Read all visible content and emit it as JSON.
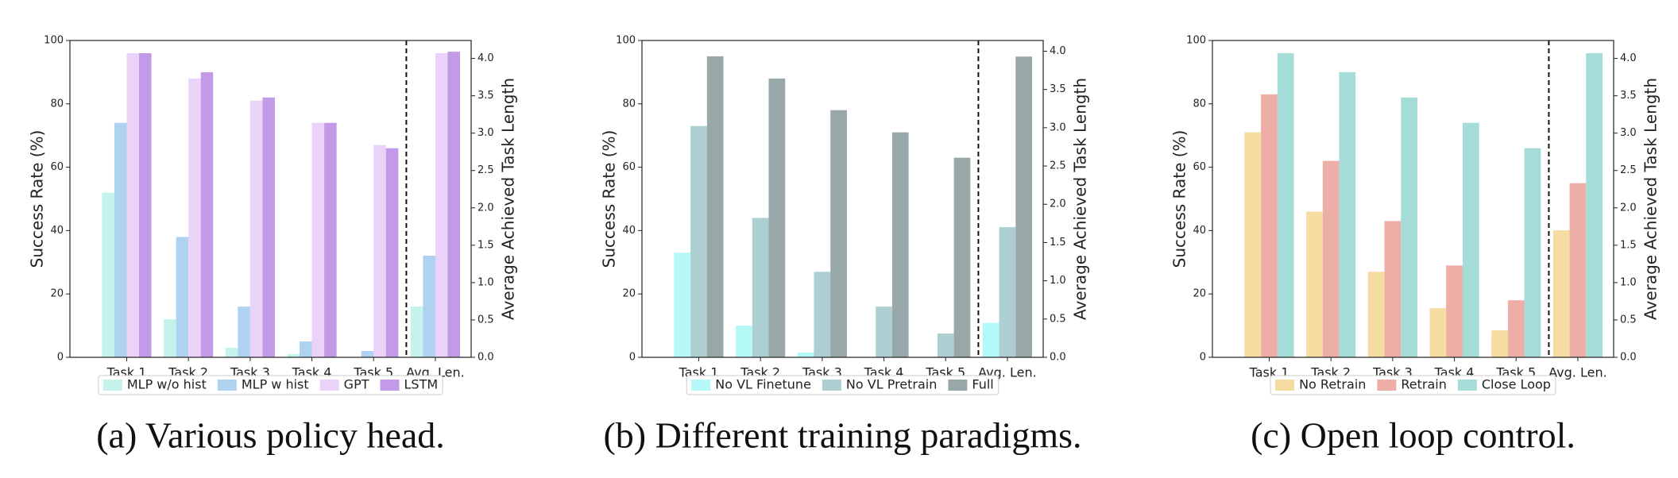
{
  "chart_data": [
    {
      "type": "bar",
      "caption": "(a) Various policy head.",
      "ylabel": "Success Rate (%)",
      "y2label": "Average Achieved Task Length",
      "categories": [
        "Task 1",
        "Task 2",
        "Task 3",
        "Task 4",
        "Task 5"
      ],
      "avg_category": "Avg. Len.",
      "ylim": [
        0,
        100
      ],
      "yticks": [
        0,
        20,
        40,
        60,
        80,
        100
      ],
      "y2lim": [
        0,
        4.24
      ],
      "y2ticks": [
        {
          "value": 0,
          "label": "0.0"
        },
        {
          "value": 0.5,
          "label": "0.5"
        },
        {
          "value": 1,
          "label": "1.0"
        },
        {
          "value": 1.5,
          "label": "1.5"
        },
        {
          "value": 2,
          "label": "2.0"
        },
        {
          "value": 2.5,
          "label": "2.5"
        },
        {
          "value": 3,
          "label": "3.0"
        },
        {
          "value": 3.5,
          "label": "3.5"
        },
        {
          "value": 4,
          "label": "4.0"
        }
      ],
      "series": [
        {
          "name": "MLP w/o hist",
          "color": "#c6f2ec",
          "values": [
            52,
            12,
            3,
            1,
            0
          ],
          "avg_value": 0.68
        },
        {
          "name": "MLP w hist",
          "color": "#aed2f0",
          "values": [
            74,
            38,
            16,
            5,
            2
          ],
          "avg_value": 1.36
        },
        {
          "name": "GPT",
          "color": "#ead2f8",
          "values": [
            96,
            88,
            81,
            74,
            67
          ],
          "avg_value": 4.07
        },
        {
          "name": "LSTM",
          "color": "#c39ae8",
          "values": [
            96,
            90,
            82,
            74,
            66
          ],
          "avg_value": 4.09
        }
      ]
    },
    {
      "type": "bar",
      "caption": "(b) Different training paradigms.",
      "ylabel": "Success Rate (%)",
      "y2label": "Average Achieved Task Length",
      "categories": [
        "Task 1",
        "Task 2",
        "Task 3",
        "Task 4",
        "Task 5"
      ],
      "avg_category": "Avg. Len.",
      "ylim": [
        0,
        100
      ],
      "yticks": [
        0,
        20,
        40,
        60,
        80,
        100
      ],
      "y2lim": [
        0,
        4.14
      ],
      "y2ticks": [
        {
          "value": 0,
          "label": "0.0"
        },
        {
          "value": 0.5,
          "label": "0.5"
        },
        {
          "value": 1,
          "label": "1.0"
        },
        {
          "value": 1.5,
          "label": "1.5"
        },
        {
          "value": 2,
          "label": "2.0"
        },
        {
          "value": 2.5,
          "label": "2.5"
        },
        {
          "value": 3,
          "label": "3.0"
        },
        {
          "value": 3.5,
          "label": "3.5"
        },
        {
          "value": 4,
          "label": "4.0"
        }
      ],
      "series": [
        {
          "name": "No VL Finetune",
          "color": "#b4f8f8",
          "values": [
            33,
            10,
            1.5,
            0,
            0
          ],
          "avg_value": 0.45
        },
        {
          "name": "No VL Pretrain",
          "color": "#aecfd2",
          "values": [
            73,
            44,
            27,
            16,
            7.5
          ],
          "avg_value": 1.7
        },
        {
          "name": "Full",
          "color": "#98a8a8",
          "values": [
            95,
            88,
            78,
            71,
            63
          ],
          "avg_value": 3.93
        }
      ]
    },
    {
      "type": "bar",
      "caption": "(c) Open loop control.",
      "ylabel": "Success Rate (%)",
      "y2label": "Average Achieved Task Length",
      "categories": [
        "Task 1",
        "Task 2",
        "Task 3",
        "Task 4",
        "Task 5"
      ],
      "avg_category": "Avg. Len.",
      "ylim": [
        0,
        100
      ],
      "yticks": [
        0,
        20,
        40,
        60,
        80,
        100
      ],
      "y2lim": [
        0,
        4.24
      ],
      "y2ticks": [
        {
          "value": 0,
          "label": "0.0"
        },
        {
          "value": 0.5,
          "label": "0.5"
        },
        {
          "value": 1,
          "label": "1.0"
        },
        {
          "value": 1.5,
          "label": "1.5"
        },
        {
          "value": 2,
          "label": "2.0"
        },
        {
          "value": 2.5,
          "label": "2.5"
        },
        {
          "value": 3,
          "label": "3.0"
        },
        {
          "value": 3.5,
          "label": "3.5"
        },
        {
          "value": 4,
          "label": "4.0"
        }
      ],
      "series": [
        {
          "name": "No Retrain",
          "color": "#f5dca0",
          "values": [
            71,
            46,
            27,
            15.5,
            8.5
          ],
          "avg_value": 1.7
        },
        {
          "name": "Retrain",
          "color": "#eeaea8",
          "values": [
            83,
            62,
            43,
            29,
            18
          ],
          "avg_value": 2.33
        },
        {
          "name": "Close Loop",
          "color": "#a6dcd8",
          "values": [
            96,
            90,
            82,
            74,
            66
          ],
          "avg_value": 4.07
        }
      ]
    }
  ]
}
